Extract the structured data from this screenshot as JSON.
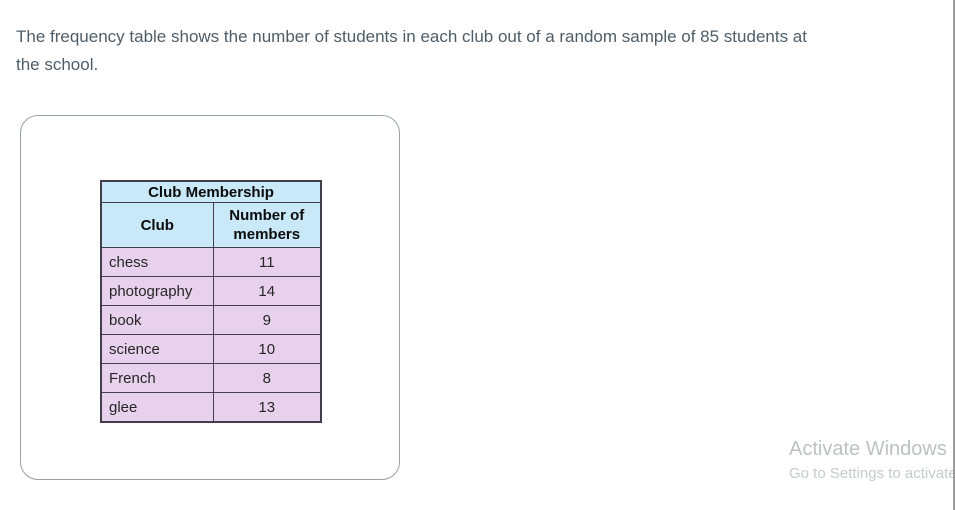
{
  "question": {
    "text": "The frequency table shows the number of students in each club out of a random sample of 85 students at the school."
  },
  "figure": {
    "table": {
      "title": "Club Membership",
      "columns": [
        "Club",
        "Number of members"
      ],
      "rows": [
        {
          "club": "chess",
          "members": "11"
        },
        {
          "club": "photography",
          "members": "14"
        },
        {
          "club": "book",
          "members": "9"
        },
        {
          "club": "science",
          "members": "10"
        },
        {
          "club": "French",
          "members": "8"
        },
        {
          "club": "glee",
          "members": "13"
        }
      ]
    }
  },
  "watermark": {
    "line1": "Activate Windows",
    "line2": "Go to Settings to activate"
  },
  "colors": {
    "table_header_bg": "#c9e8f8",
    "table_row_bg": "#e8d1ec",
    "table_border": "#433d4c",
    "question_text": "#4e5d68",
    "panel_border": "#9aa0a4",
    "watermark_text": "#bdc1c3",
    "edge_strip": "#9c9c9c"
  }
}
